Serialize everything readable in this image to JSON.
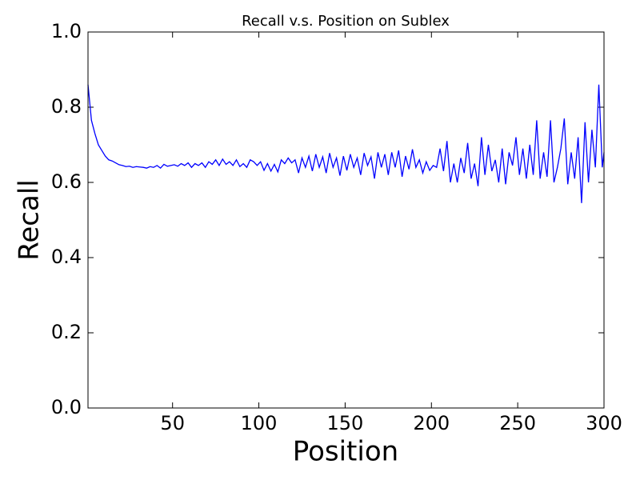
{
  "chart_data": {
    "type": "line",
    "title": "Recall v.s. Position on Sublex",
    "x_label": "Position",
    "y_label": "Recall",
    "color": "#0000ff",
    "x": [
      1,
      3,
      5,
      7,
      9,
      11,
      13,
      15,
      17,
      19,
      21,
      23,
      25,
      27,
      29,
      31,
      33,
      35,
      37,
      39,
      41,
      43,
      45,
      47,
      49,
      51,
      53,
      55,
      57,
      59,
      61,
      63,
      65,
      67,
      69,
      71,
      73,
      75,
      77,
      79,
      81,
      83,
      85,
      87,
      89,
      91,
      93,
      95,
      97,
      99,
      101,
      103,
      105,
      107,
      109,
      111,
      113,
      115,
      117,
      119,
      121,
      123,
      125,
      127,
      129,
      131,
      133,
      135,
      137,
      139,
      141,
      143,
      145,
      147,
      149,
      151,
      153,
      155,
      157,
      159,
      161,
      163,
      165,
      167,
      169,
      171,
      173,
      175,
      177,
      179,
      181,
      183,
      185,
      187,
      189,
      191,
      193,
      195,
      197,
      199,
      201,
      203,
      205,
      207,
      209,
      211,
      213,
      215,
      217,
      219,
      221,
      223,
      225,
      227,
      229,
      231,
      233,
      235,
      237,
      239,
      241,
      243,
      245,
      247,
      249,
      251,
      253,
      255,
      257,
      259,
      261,
      263,
      265,
      267,
      269,
      271,
      273,
      275,
      277,
      279,
      281,
      283,
      285,
      287,
      289,
      291,
      293,
      295,
      297,
      299,
      300
    ],
    "values": [
      0.86,
      0.765,
      0.73,
      0.7,
      0.685,
      0.67,
      0.66,
      0.657,
      0.652,
      0.647,
      0.645,
      0.642,
      0.643,
      0.64,
      0.642,
      0.641,
      0.64,
      0.638,
      0.642,
      0.64,
      0.645,
      0.638,
      0.648,
      0.643,
      0.645,
      0.647,
      0.643,
      0.65,
      0.645,
      0.652,
      0.64,
      0.65,
      0.645,
      0.652,
      0.64,
      0.655,
      0.648,
      0.66,
      0.645,
      0.662,
      0.648,
      0.655,
      0.645,
      0.66,
      0.642,
      0.65,
      0.64,
      0.66,
      0.655,
      0.645,
      0.655,
      0.632,
      0.65,
      0.63,
      0.648,
      0.628,
      0.66,
      0.65,
      0.665,
      0.652,
      0.66,
      0.625,
      0.665,
      0.64,
      0.67,
      0.63,
      0.675,
      0.64,
      0.668,
      0.625,
      0.678,
      0.64,
      0.665,
      0.618,
      0.67,
      0.632,
      0.675,
      0.64,
      0.665,
      0.62,
      0.678,
      0.645,
      0.668,
      0.61,
      0.68,
      0.64,
      0.675,
      0.62,
      0.68,
      0.64,
      0.685,
      0.615,
      0.67,
      0.635,
      0.688,
      0.64,
      0.66,
      0.625,
      0.655,
      0.632,
      0.645,
      0.64,
      0.69,
      0.63,
      0.71,
      0.6,
      0.65,
      0.6,
      0.665,
      0.625,
      0.705,
      0.61,
      0.65,
      0.59,
      0.72,
      0.62,
      0.7,
      0.63,
      0.66,
      0.6,
      0.69,
      0.595,
      0.68,
      0.645,
      0.72,
      0.62,
      0.69,
      0.61,
      0.7,
      0.62,
      0.765,
      0.61,
      0.68,
      0.615,
      0.765,
      0.6,
      0.64,
      0.69,
      0.77,
      0.595,
      0.68,
      0.61,
      0.72,
      0.545,
      0.76,
      0.6,
      0.74,
      0.64,
      0.86,
      0.64,
      0.68
    ],
    "xlim": [
      1,
      300
    ],
    "xticks": [
      50,
      100,
      150,
      200,
      250,
      300
    ],
    "ylim": [
      0,
      1
    ],
    "yticks": [
      {
        "value": 0,
        "label": "0.0"
      },
      0.2,
      0.4,
      0.6,
      0.8,
      {
        "value": 1,
        "label": "1.0"
      }
    ]
  }
}
